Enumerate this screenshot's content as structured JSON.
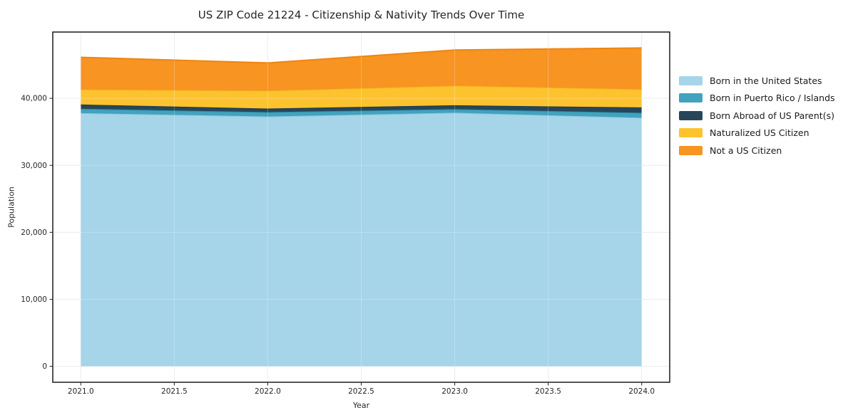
{
  "title": "US ZIP Code 21224 - Citizenship & Nativity Trends Over Time",
  "chart_data": {
    "type": "area",
    "stacked": true,
    "title": "US ZIP Code 21224 - Citizenship & Nativity Trends Over Time",
    "xlabel": "Year",
    "ylabel": "Population",
    "x": [
      2021,
      2022,
      2023,
      2024
    ],
    "series": [
      {
        "name": "Born in the United States",
        "values": [
          37800,
          37300,
          37850,
          37100
        ],
        "color": "#a6d4e8",
        "edge": "#8cc6e0"
      },
      {
        "name": "Born in Puerto Rico / Islands",
        "values": [
          640,
          640,
          530,
          750
        ],
        "color": "#41a3bd",
        "edge": "#2d8fa9"
      },
      {
        "name": "Born Abroad of US Parent(s)",
        "values": [
          640,
          530,
          580,
          800
        ],
        "color": "#27465a",
        "edge": "#1c3849"
      },
      {
        "name": "Naturalized US Citizen",
        "values": [
          2250,
          2670,
          2930,
          2700
        ],
        "color": "#fdc32f",
        "edge": "#f4b31a"
      },
      {
        "name": "Not a US Citizen",
        "values": [
          4790,
          4140,
          5320,
          6170
        ],
        "color": "#f79422",
        "edge": "#ee8511"
      }
    ],
    "totals": [
      46120,
      45280,
      47210,
      47520
    ],
    "xlim": [
      2020.85,
      2024.15
    ],
    "ylim": [
      -2376,
      49896
    ],
    "x_tick_values": [
      2021,
      2021.5,
      2022,
      2022.5,
      2023,
      2023.5,
      2024
    ],
    "x_tick_labels": [
      "2021.0",
      "2021.5",
      "2022.0",
      "2022.5",
      "2023.0",
      "2023.5",
      "2024.0"
    ],
    "y_tick_values": [
      0,
      10000,
      20000,
      30000,
      40000
    ],
    "y_tick_labels": [
      "0",
      "10,000",
      "20,000",
      "30,000",
      "40,000"
    ],
    "grid": true,
    "legend_position": "right of plot, upper area",
    "colors": {
      "grid": "#e7e7e7",
      "spine": "#1a1a1a",
      "tick": "#333333",
      "tick_label": "#262626",
      "background": "#ffffff"
    }
  }
}
